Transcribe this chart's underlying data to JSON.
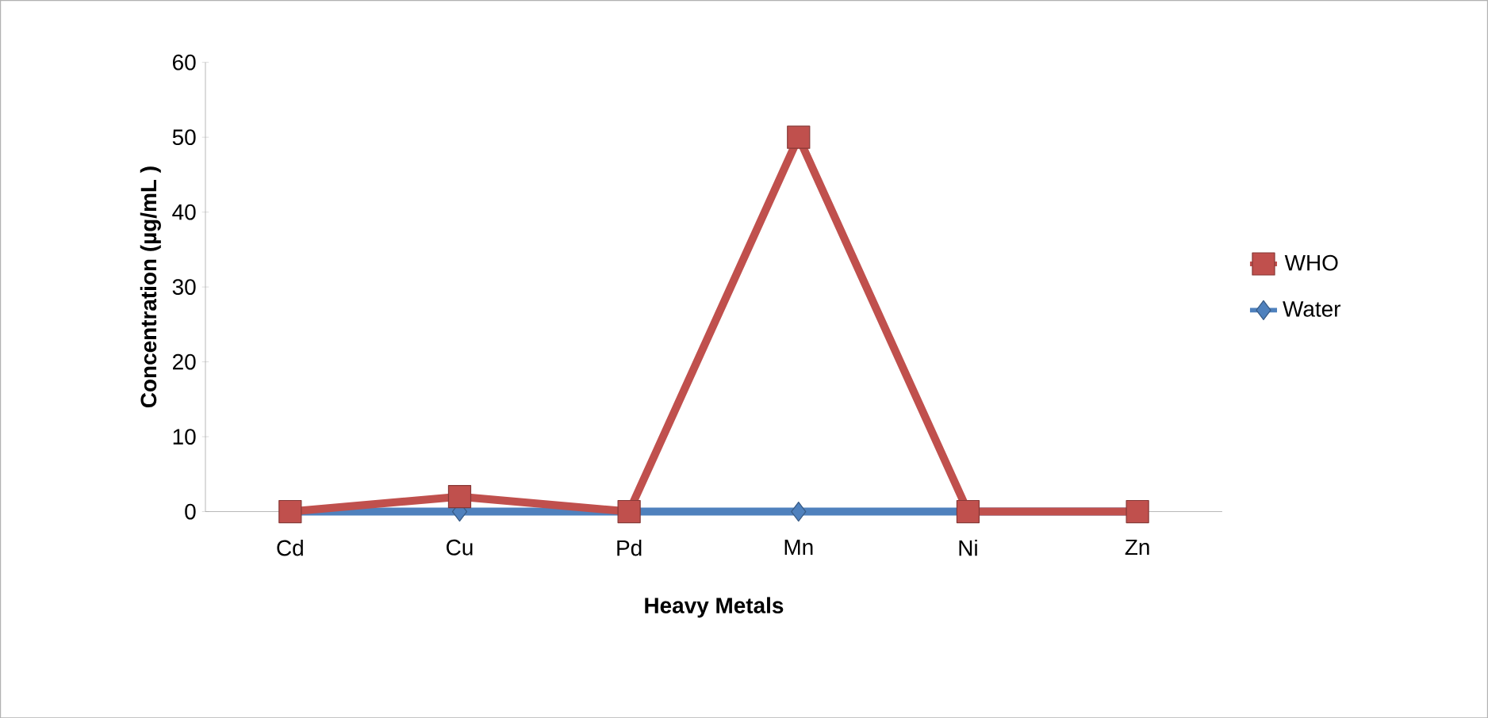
{
  "chart_data": {
    "type": "line",
    "xlabel": "Heavy Metals",
    "ylabel": "Concentration (µg/mL )",
    "categories": [
      "Cd",
      "Cu",
      "Pd",
      "Mn",
      "Ni",
      "Zn"
    ],
    "series": [
      {
        "name": "WHO",
        "color": "#c0504d",
        "marker": "square",
        "values": [
          0,
          2,
          0,
          50,
          0,
          0
        ]
      },
      {
        "name": "Water",
        "color": "#4f81bd",
        "marker": "diamond",
        "values": [
          0,
          0,
          0,
          0,
          0,
          0
        ]
      }
    ],
    "ylim": [
      0,
      60
    ],
    "yticks": [
      0,
      10,
      20,
      30,
      40,
      50,
      60
    ],
    "grid": false,
    "legend": "right",
    "line_style": "solid"
  }
}
